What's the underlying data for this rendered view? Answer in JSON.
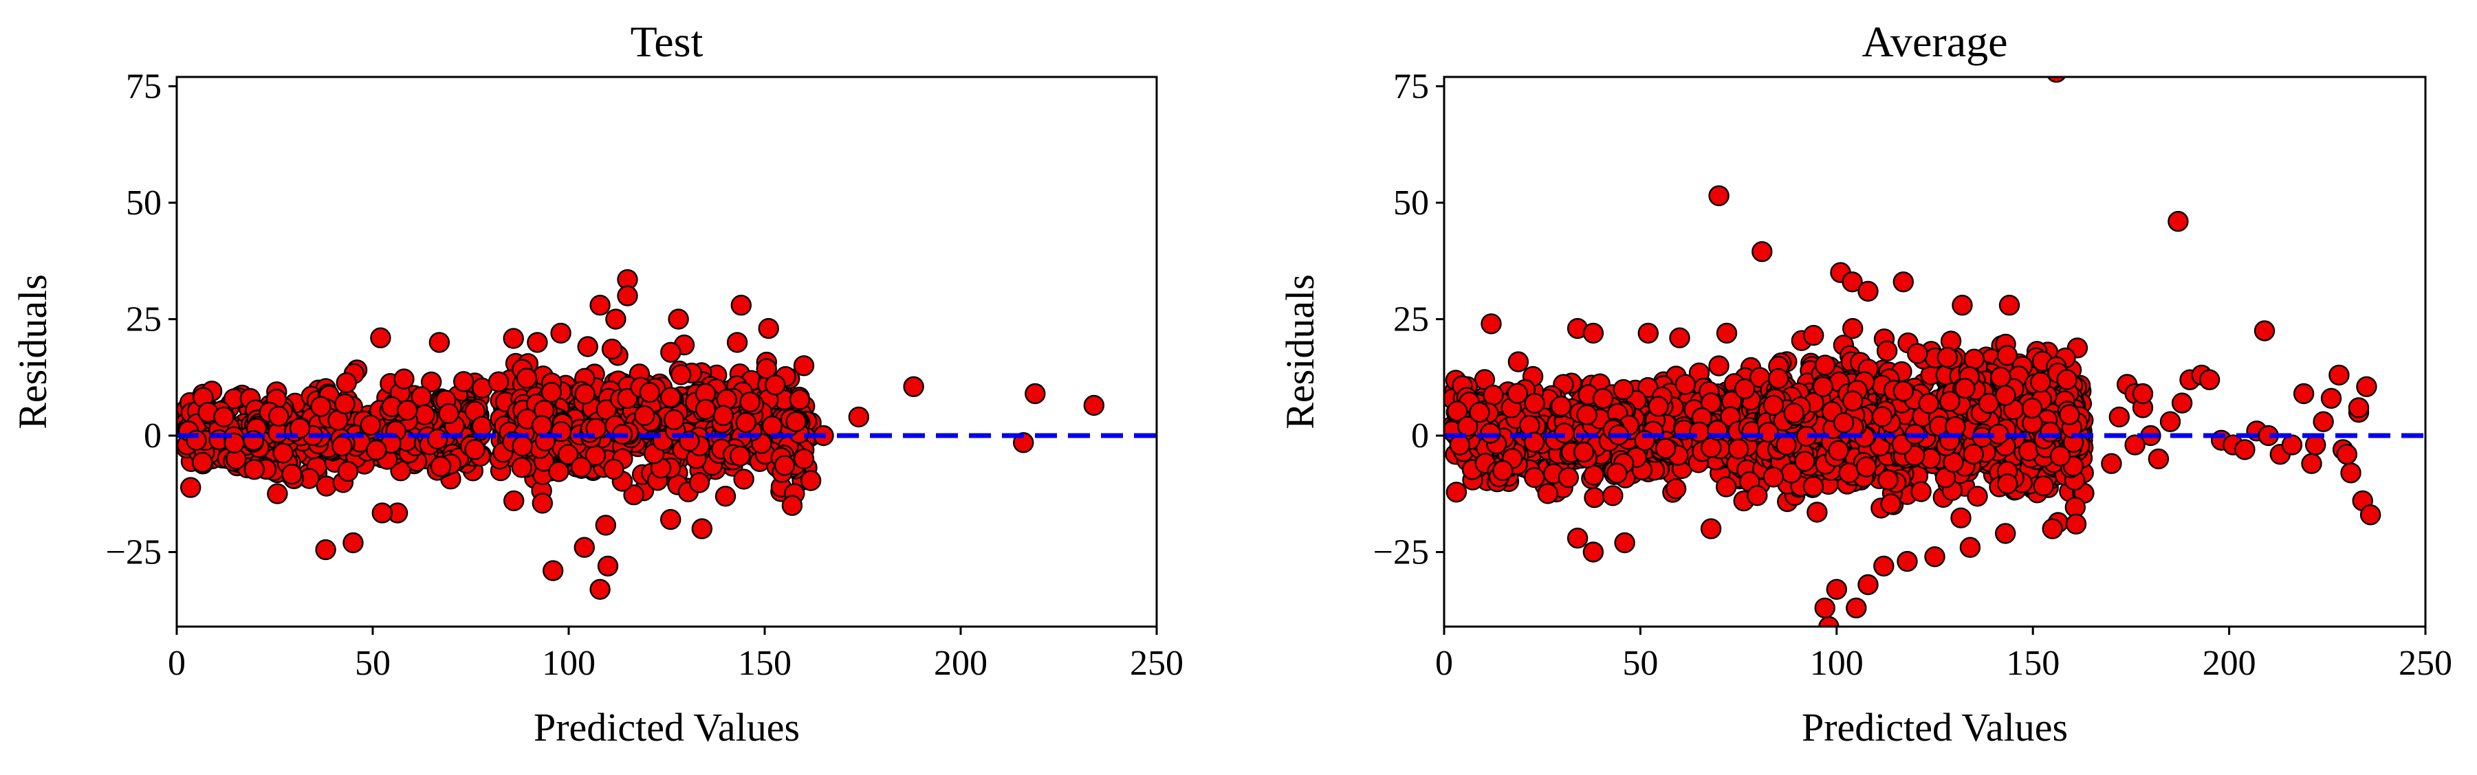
{
  "colors": {
    "point_fill": "#ee0000",
    "point_edge": "#000000",
    "zero_line": "#0000ee"
  },
  "chart_data": [
    {
      "type": "scatter",
      "title": "Test",
      "xlabel": "Predicted Values",
      "ylabel": "Residuals",
      "xlim": [
        0,
        250
      ],
      "ylim": [
        -41,
        77
      ],
      "xticks": [
        0,
        50,
        100,
        150,
        200,
        250
      ],
      "yticks": [
        -25,
        0,
        25,
        50,
        75
      ],
      "xtick_labels": [
        "0",
        "50",
        "100",
        "150",
        "200",
        "250"
      ],
      "ytick_labels": [
        "−25",
        "0",
        "25",
        "50",
        "75"
      ],
      "reference_line": {
        "y": 0,
        "style": "dashed",
        "color": "#0000ee"
      },
      "clusters": [
        {
          "x_range": [
            2,
            78
          ],
          "y_center": 1,
          "spread": 8,
          "count": 520
        },
        {
          "x_range": [
            82,
            162
          ],
          "y_center": 2,
          "spread": 10,
          "count": 720
        }
      ],
      "points": [
        [
          38,
          -24.5
        ],
        [
          45,
          -23
        ],
        [
          52,
          21
        ],
        [
          67,
          20
        ],
        [
          96,
          -29
        ],
        [
          108,
          -33
        ],
        [
          110,
          -28
        ],
        [
          104,
          -24
        ],
        [
          115,
          33.5
        ],
        [
          115,
          30
        ],
        [
          108,
          28
        ],
        [
          98,
          22
        ],
        [
          112,
          25
        ],
        [
          128,
          25
        ],
        [
          144,
          28
        ],
        [
          151,
          23
        ],
        [
          143,
          20
        ],
        [
          160,
          15
        ],
        [
          157,
          -15
        ],
        [
          140,
          -13
        ],
        [
          134,
          -20
        ],
        [
          126,
          -18
        ],
        [
          86,
          -14
        ],
        [
          92,
          20
        ],
        [
          165,
          0
        ],
        [
          174,
          4
        ],
        [
          188,
          10.5
        ],
        [
          216,
          -1.5
        ],
        [
          219,
          9
        ],
        [
          234,
          6.5
        ],
        [
          3,
          1
        ],
        [
          5,
          -1
        ],
        [
          8,
          5
        ],
        [
          12,
          4
        ],
        [
          160,
          -5
        ],
        [
          158,
          3
        ]
      ]
    },
    {
      "type": "scatter",
      "title": "Average",
      "xlabel": "Predicted Values",
      "ylabel": "Residuals",
      "xlim": [
        0,
        250
      ],
      "ylim": [
        -41,
        77
      ],
      "xticks": [
        0,
        50,
        100,
        150,
        200,
        250
      ],
      "yticks": [
        -25,
        0,
        25,
        50,
        75
      ],
      "xtick_labels": [
        "0",
        "50",
        "100",
        "150",
        "200",
        "250"
      ],
      "ytick_labels": [
        "−25",
        "0",
        "25",
        "50",
        "75"
      ],
      "reference_line": {
        "y": 0,
        "style": "dashed",
        "color": "#0000ee"
      },
      "clusters": [
        {
          "x_range": [
            2,
            82
          ],
          "y_center": 1,
          "spread": 9,
          "count": 900
        },
        {
          "x_range": [
            82,
            163
          ],
          "y_center": 2,
          "spread": 12,
          "count": 1300
        }
      ],
      "points": [
        [
          156,
          78
        ],
        [
          70,
          51.5
        ],
        [
          81,
          39.5
        ],
        [
          187,
          46
        ],
        [
          12,
          24
        ],
        [
          209,
          22.5
        ],
        [
          101,
          35
        ],
        [
          104,
          33
        ],
        [
          108,
          31
        ],
        [
          117,
          33
        ],
        [
          132,
          28
        ],
        [
          144,
          28
        ],
        [
          34,
          23
        ],
        [
          38,
          22
        ],
        [
          52,
          22
        ],
        [
          60,
          21
        ],
        [
          72,
          22
        ],
        [
          98,
          -41
        ],
        [
          97,
          -37
        ],
        [
          100,
          -33
        ],
        [
          105,
          -37
        ],
        [
          108,
          -32
        ],
        [
          112,
          -28
        ],
        [
          118,
          -27
        ],
        [
          125,
          -26
        ],
        [
          134,
          -24
        ],
        [
          143,
          -21
        ],
        [
          155,
          -20
        ],
        [
          161,
          -19
        ],
        [
          68,
          -20
        ],
        [
          46,
          -23
        ],
        [
          38,
          -25
        ],
        [
          34,
          -22
        ],
        [
          170,
          -6
        ],
        [
          172,
          4
        ],
        [
          174,
          11
        ],
        [
          176,
          9
        ],
        [
          178,
          6
        ],
        [
          180,
          0
        ],
        [
          182,
          -5
        ],
        [
          185,
          3
        ],
        [
          188,
          7
        ],
        [
          190,
          12
        ],
        [
          193,
          13
        ],
        [
          195,
          12
        ],
        [
          198,
          -1
        ],
        [
          201,
          -2
        ],
        [
          204,
          -3
        ],
        [
          207,
          1
        ],
        [
          210,
          0
        ],
        [
          213,
          -4
        ],
        [
          216,
          -2
        ],
        [
          219,
          9
        ],
        [
          221,
          -6
        ],
        [
          224,
          3
        ],
        [
          226,
          8
        ],
        [
          228,
          13
        ],
        [
          229,
          -3
        ],
        [
          231,
          -8
        ],
        [
          233,
          5
        ],
        [
          234,
          -14
        ],
        [
          235,
          10.5
        ],
        [
          236,
          -17
        ],
        [
          233,
          6
        ],
        [
          230,
          -4
        ],
        [
          222,
          -2
        ],
        [
          176,
          -2
        ],
        [
          178,
          9
        ],
        [
          2,
          1
        ],
        [
          4,
          -2
        ],
        [
          6,
          2
        ],
        [
          9,
          5
        ]
      ]
    }
  ]
}
